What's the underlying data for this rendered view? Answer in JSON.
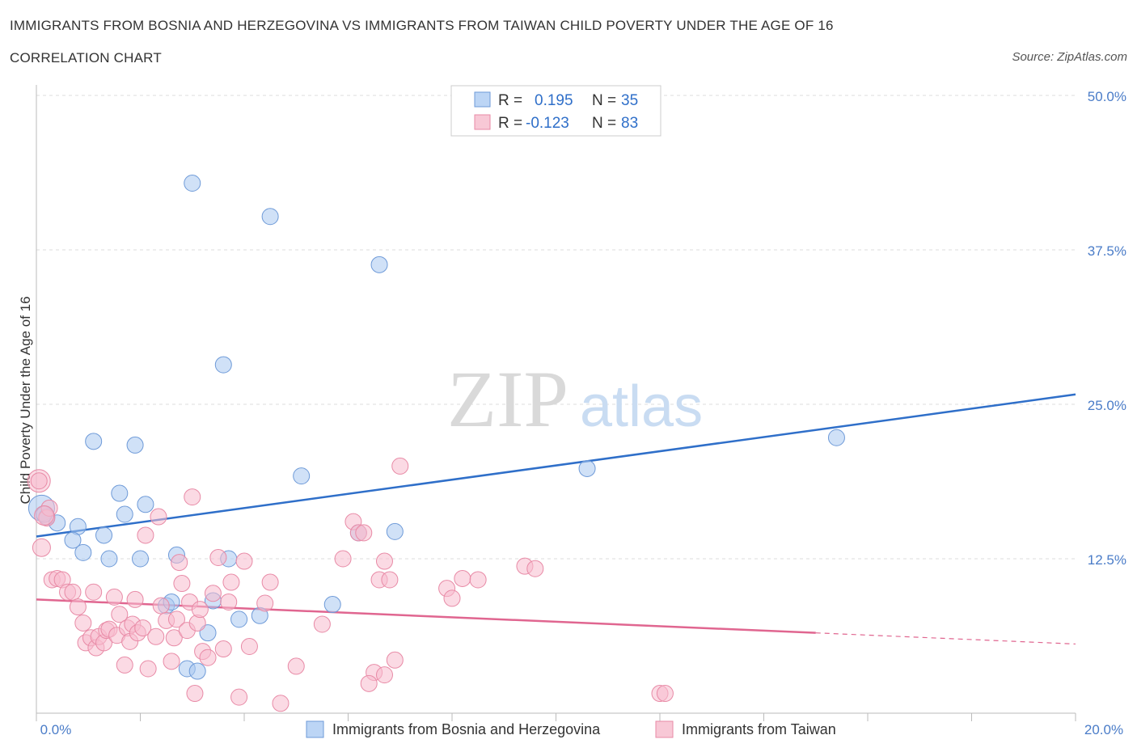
{
  "title": "IMMIGRANTS FROM BOSNIA AND HERZEGOVINA VS IMMIGRANTS FROM TAIWAN CHILD POVERTY UNDER THE AGE OF 16",
  "subtitle": "CORRELATION CHART",
  "source": "Source: ZipAtlas.com",
  "watermark": {
    "zip": "ZIP",
    "atlas": "atlas"
  },
  "legend": {
    "r_label": "R =",
    "n_label": "N =",
    "rows": [
      {
        "r": "0.195",
        "n": "35"
      },
      {
        "r": "-0.123",
        "n": "83"
      }
    ]
  },
  "chart_data": {
    "type": "scatter",
    "xlabel": "",
    "ylabel": "Child Poverty Under the Age of 16",
    "xlim": [
      0,
      20
    ],
    "ylim": [
      0,
      50
    ],
    "x_tick_labels": [
      "0.0%",
      "20.0%"
    ],
    "y_ticks": [
      12.5,
      25,
      37.5,
      50
    ],
    "y_tick_labels": [
      "12.5%",
      "25.0%",
      "37.5%",
      "50.0%"
    ],
    "grid": true,
    "legend_position": "top-center",
    "series": [
      {
        "name": "Immigrants from Bosnia and Herzegovina",
        "color": "#a9c8f0",
        "stroke": "#6e9ad8",
        "line_color": "#2f6fc9",
        "trend": {
          "x0": 0,
          "y0": 14.3,
          "x1": 20,
          "y1": 25.8,
          "dashed_from": null
        },
        "points": [
          [
            0.1,
            16.6,
            16
          ],
          [
            0.2,
            15.9,
            10
          ],
          [
            0.4,
            15.4,
            10
          ],
          [
            0.8,
            15.1,
            10
          ],
          [
            0.7,
            14.0,
            10
          ],
          [
            0.9,
            13.0,
            10
          ],
          [
            1.1,
            22.0,
            10
          ],
          [
            1.3,
            14.4,
            10
          ],
          [
            1.4,
            12.5,
            10
          ],
          [
            1.6,
            17.8,
            10
          ],
          [
            1.7,
            16.1,
            10
          ],
          [
            1.9,
            21.7,
            10
          ],
          [
            2.0,
            12.5,
            10
          ],
          [
            2.1,
            16.9,
            10
          ],
          [
            2.5,
            8.7,
            10
          ],
          [
            2.6,
            9.0,
            10
          ],
          [
            2.7,
            12.8,
            10
          ],
          [
            2.9,
            3.6,
            10
          ],
          [
            3.0,
            42.9,
            10
          ],
          [
            3.1,
            3.4,
            10
          ],
          [
            3.3,
            6.5,
            10
          ],
          [
            3.4,
            9.1,
            10
          ],
          [
            3.6,
            28.2,
            10
          ],
          [
            3.7,
            12.5,
            10
          ],
          [
            3.9,
            7.6,
            10
          ],
          [
            4.3,
            7.9,
            10
          ],
          [
            4.5,
            40.2,
            10
          ],
          [
            5.1,
            19.2,
            10
          ],
          [
            5.7,
            8.8,
            10
          ],
          [
            6.2,
            14.6,
            10
          ],
          [
            6.6,
            36.3,
            10
          ],
          [
            6.9,
            14.7,
            10
          ],
          [
            10.6,
            19.8,
            10
          ],
          [
            15.4,
            22.3,
            10
          ],
          [
            0.15,
            16.1,
            10
          ]
        ]
      },
      {
        "name": "Immigrants from Taiwan",
        "color": "#f7bccd",
        "stroke": "#e88aa6",
        "line_color": "#e06690",
        "trend": {
          "x0": 0,
          "y0": 9.2,
          "x1": 20,
          "y1": 5.6,
          "dashed_from": 15.0
        },
        "points": [
          [
            0.05,
            18.8,
            14
          ],
          [
            0.1,
            13.4,
            11
          ],
          [
            0.2,
            15.8,
            10
          ],
          [
            0.25,
            16.6,
            10
          ],
          [
            0.3,
            10.8,
            10
          ],
          [
            0.4,
            10.9,
            10
          ],
          [
            0.5,
            10.8,
            10
          ],
          [
            0.6,
            9.8,
            10
          ],
          [
            0.7,
            9.8,
            10
          ],
          [
            0.8,
            8.6,
            10
          ],
          [
            0.9,
            7.3,
            10
          ],
          [
            0.95,
            5.7,
            10
          ],
          [
            1.05,
            6.1,
            10
          ],
          [
            1.1,
            9.8,
            10
          ],
          [
            1.15,
            5.3,
            10
          ],
          [
            1.2,
            6.2,
            10
          ],
          [
            1.3,
            5.7,
            10
          ],
          [
            1.35,
            6.7,
            10
          ],
          [
            1.4,
            6.8,
            10
          ],
          [
            1.5,
            9.4,
            10
          ],
          [
            1.55,
            6.3,
            10
          ],
          [
            1.6,
            8.0,
            10
          ],
          [
            1.7,
            3.9,
            10
          ],
          [
            1.75,
            6.9,
            10
          ],
          [
            1.8,
            5.8,
            10
          ],
          [
            1.85,
            7.2,
            10
          ],
          [
            1.9,
            9.2,
            10
          ],
          [
            1.95,
            6.5,
            10
          ],
          [
            2.05,
            6.9,
            10
          ],
          [
            2.1,
            14.4,
            10
          ],
          [
            2.15,
            3.6,
            10
          ],
          [
            2.3,
            6.2,
            10
          ],
          [
            2.35,
            15.9,
            10
          ],
          [
            2.4,
            8.7,
            10
          ],
          [
            2.5,
            7.5,
            10
          ],
          [
            2.6,
            4.2,
            10
          ],
          [
            2.65,
            6.1,
            10
          ],
          [
            2.7,
            7.6,
            10
          ],
          [
            2.75,
            12.2,
            10
          ],
          [
            2.8,
            10.5,
            10
          ],
          [
            2.9,
            6.7,
            10
          ],
          [
            2.95,
            9.0,
            10
          ],
          [
            3.0,
            17.5,
            10
          ],
          [
            3.05,
            1.6,
            10
          ],
          [
            3.1,
            7.3,
            10
          ],
          [
            3.15,
            8.4,
            10
          ],
          [
            3.2,
            5.0,
            10
          ],
          [
            3.3,
            4.5,
            10
          ],
          [
            3.4,
            9.7,
            10
          ],
          [
            3.5,
            12.6,
            10
          ],
          [
            3.6,
            5.2,
            10
          ],
          [
            3.7,
            9.0,
            10
          ],
          [
            3.75,
            10.6,
            10
          ],
          [
            3.9,
            1.3,
            10
          ],
          [
            4.0,
            12.3,
            10
          ],
          [
            4.1,
            5.4,
            10
          ],
          [
            4.4,
            8.9,
            10
          ],
          [
            4.5,
            10.6,
            10
          ],
          [
            4.7,
            0.8,
            10
          ],
          [
            5.0,
            3.8,
            10
          ],
          [
            5.5,
            7.2,
            10
          ],
          [
            5.9,
            12.5,
            10
          ],
          [
            6.1,
            15.5,
            10
          ],
          [
            6.2,
            14.6,
            10
          ],
          [
            6.3,
            14.6,
            10
          ],
          [
            6.5,
            3.3,
            10
          ],
          [
            6.6,
            10.8,
            10
          ],
          [
            6.7,
            12.3,
            10
          ],
          [
            6.8,
            10.8,
            10
          ],
          [
            6.9,
            4.3,
            10
          ],
          [
            7.0,
            20.0,
            10
          ],
          [
            6.4,
            2.4,
            10
          ],
          [
            6.7,
            3.1,
            10
          ],
          [
            7.9,
            10.1,
            10
          ],
          [
            8.0,
            9.3,
            10
          ],
          [
            8.2,
            10.9,
            10
          ],
          [
            8.5,
            10.8,
            10
          ],
          [
            9.4,
            11.9,
            10
          ],
          [
            9.6,
            11.7,
            10
          ],
          [
            12.0,
            1.6,
            10
          ],
          [
            12.1,
            1.6,
            10
          ],
          [
            0.15,
            16.0,
            12
          ],
          [
            0.05,
            18.8,
            10
          ]
        ]
      }
    ]
  }
}
